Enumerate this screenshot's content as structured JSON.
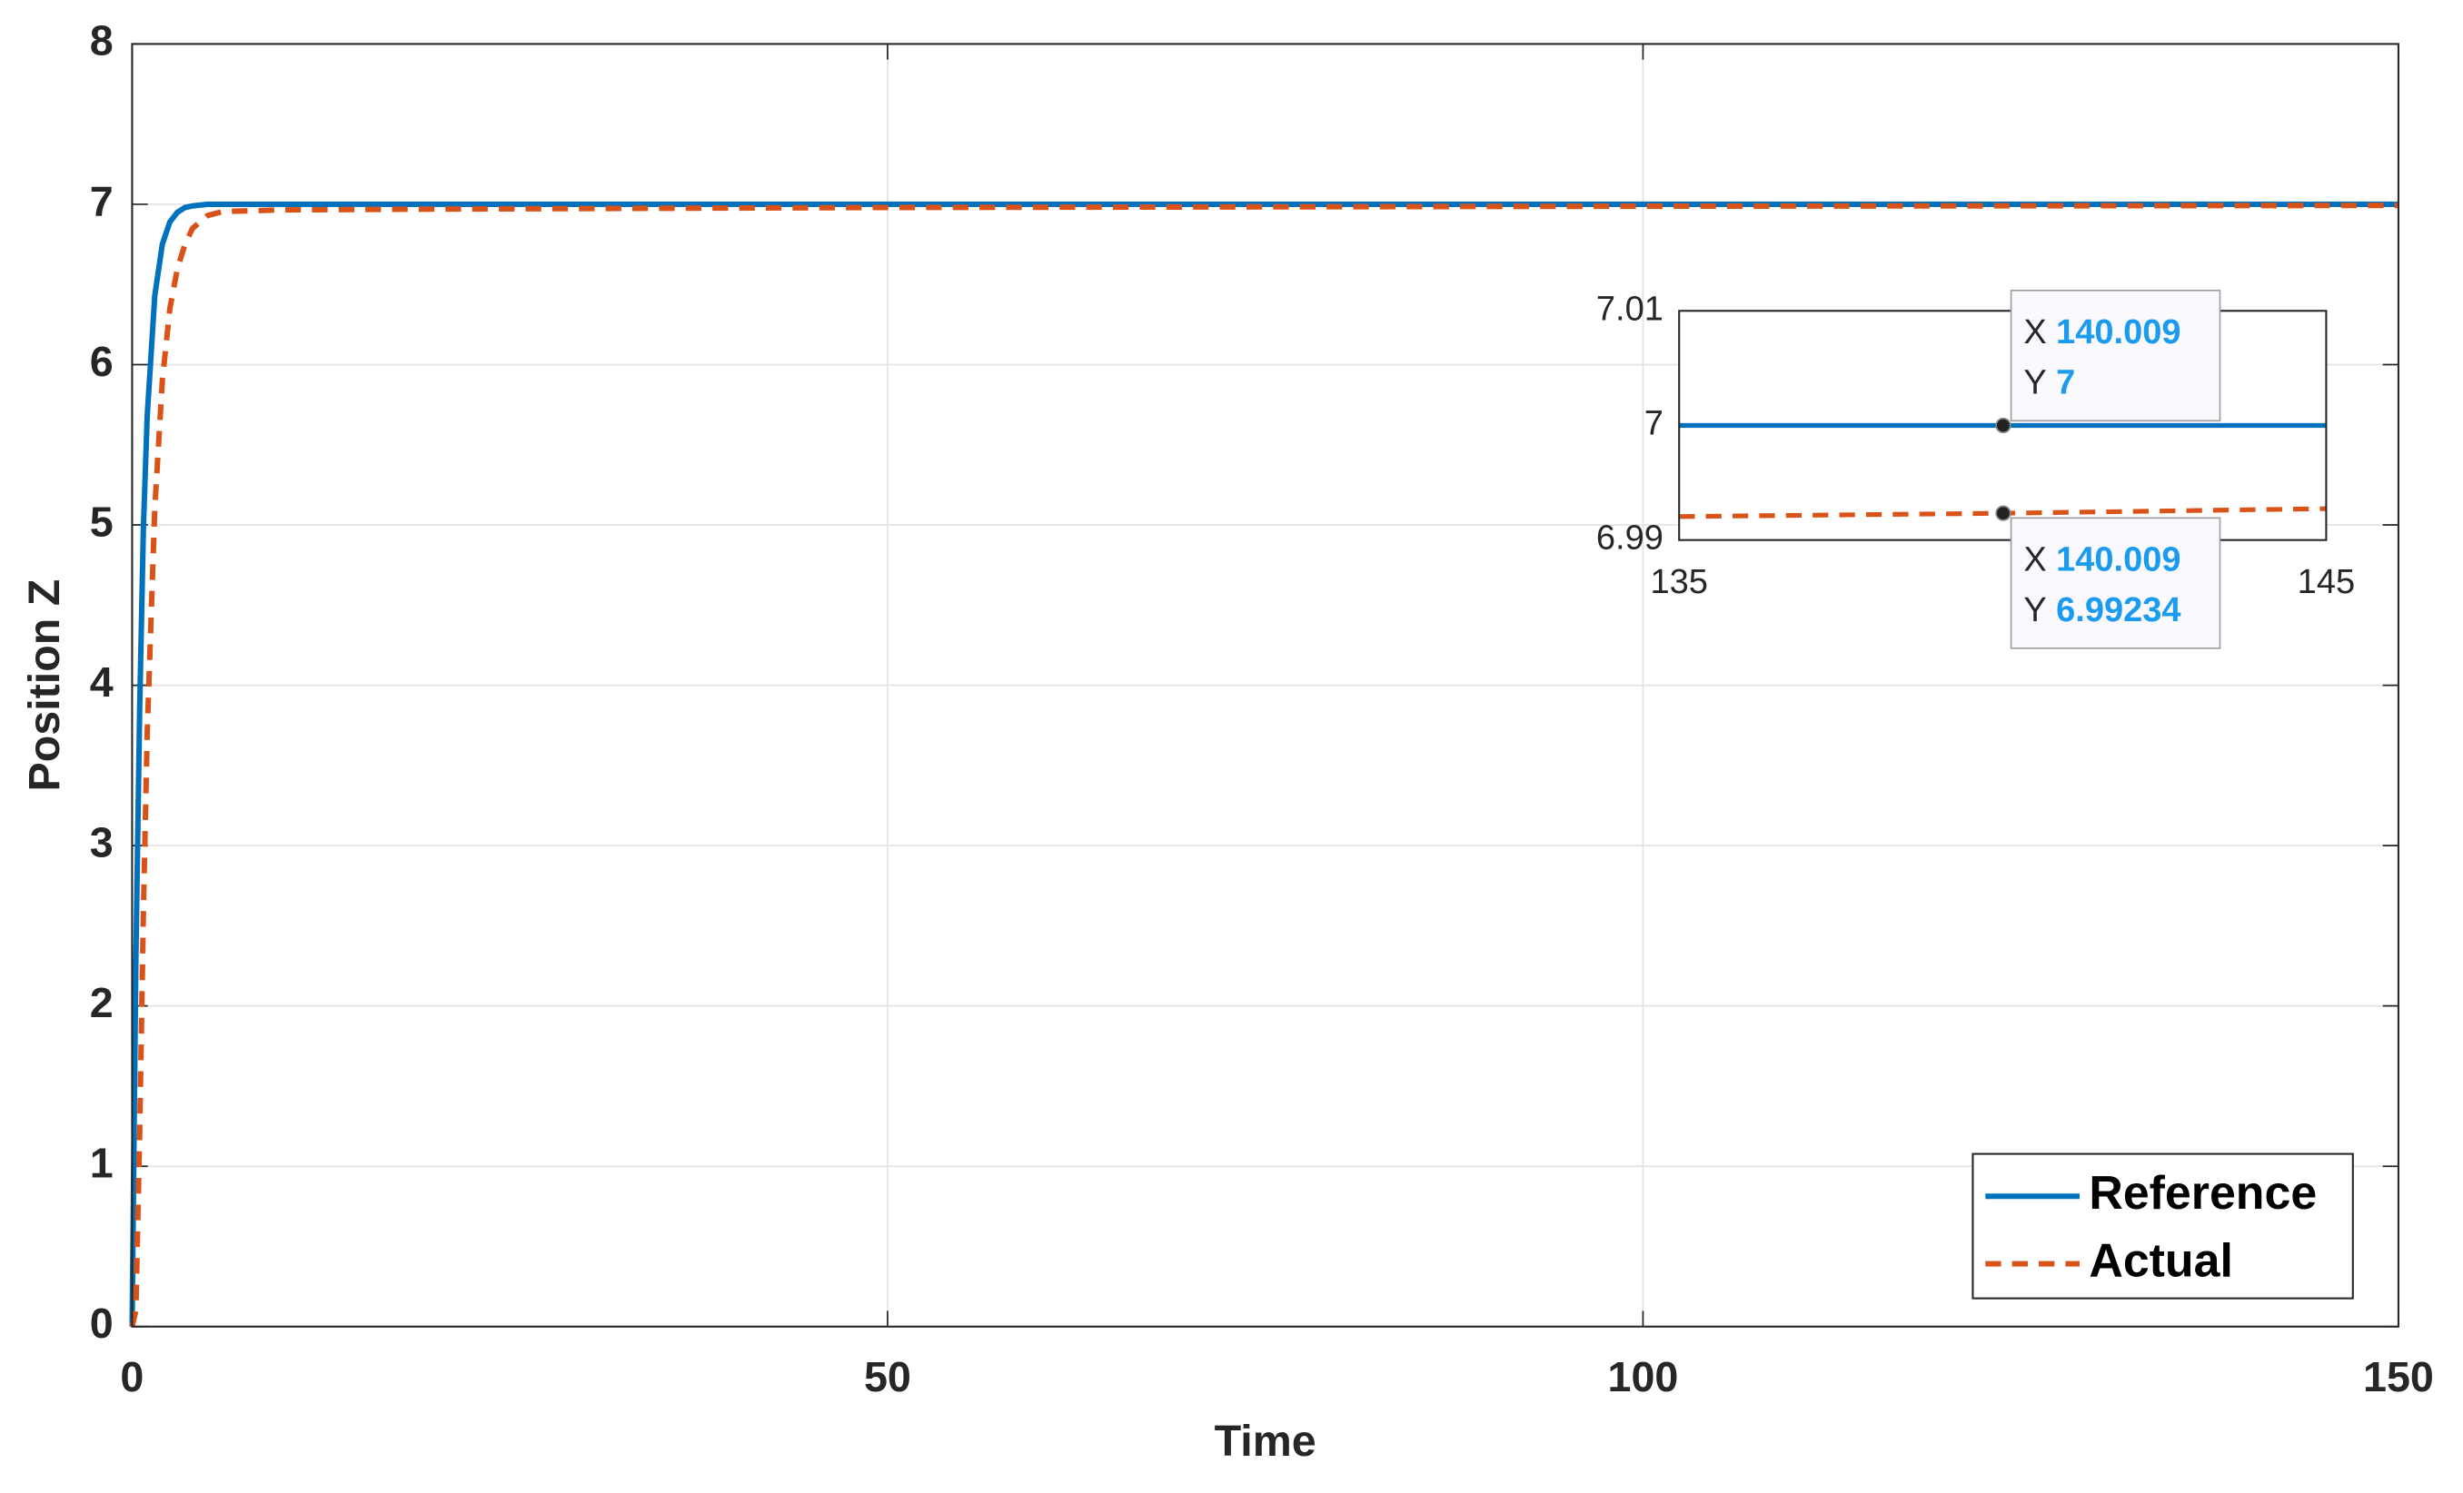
{
  "chart_data": [
    {
      "type": "line",
      "xlabel": "Time",
      "ylabel": "Position Z",
      "x": [
        0,
        0.25,
        0.5,
        0.75,
        1,
        1.5,
        2,
        2.5,
        3,
        3.5,
        4,
        5,
        6,
        8,
        10,
        20,
        50,
        100,
        150
      ],
      "series": [
        {
          "name": "Reference",
          "color": "#0072bd",
          "style": "solid",
          "values": [
            0,
            2.29,
            3.85,
            4.99,
            5.68,
            6.43,
            6.75,
            6.89,
            6.95,
            6.98,
            6.99,
            7,
            7,
            7,
            7,
            7,
            7,
            7,
            7
          ]
        },
        {
          "name": "Actual",
          "color": "#d95319",
          "style": "dashed",
          "values": [
            0,
            0.1,
            1.2,
            2.6,
            3.7,
            5.1,
            5.9,
            6.35,
            6.6,
            6.75,
            6.85,
            6.93,
            6.955,
            6.96,
            6.965,
            6.97,
            6.98,
            6.988,
            6.993
          ]
        }
      ],
      "xlim": [
        0,
        150
      ],
      "xticks": [
        0,
        50,
        100,
        150
      ],
      "ylim": [
        0,
        8
      ],
      "yticks": [
        0,
        1,
        2,
        3,
        4,
        5,
        6,
        7,
        8
      ],
      "grid": true,
      "legend": "lower right"
    },
    {
      "type": "line",
      "x": [
        135,
        140.009,
        145
      ],
      "series": [
        {
          "color": "#0072bd",
          "style": "solid",
          "values": [
            7,
            7,
            7
          ]
        },
        {
          "color": "#d95319",
          "style": "dashed",
          "values": [
            6.99205,
            6.99234,
            6.99274
          ]
        }
      ],
      "xlim": [
        135,
        145
      ],
      "xticks": [
        135,
        145
      ],
      "ylim": [
        6.99,
        7.01
      ],
      "yticks": [
        6.99,
        7,
        7.01
      ],
      "grid": false,
      "datatip_labels": [
        "X",
        "Y"
      ],
      "datatip_color": "#1a9bf0",
      "datatips": [
        {
          "x": 140.009,
          "y": 7
        },
        {
          "x": 140.009,
          "y": 6.99234
        }
      ]
    }
  ]
}
